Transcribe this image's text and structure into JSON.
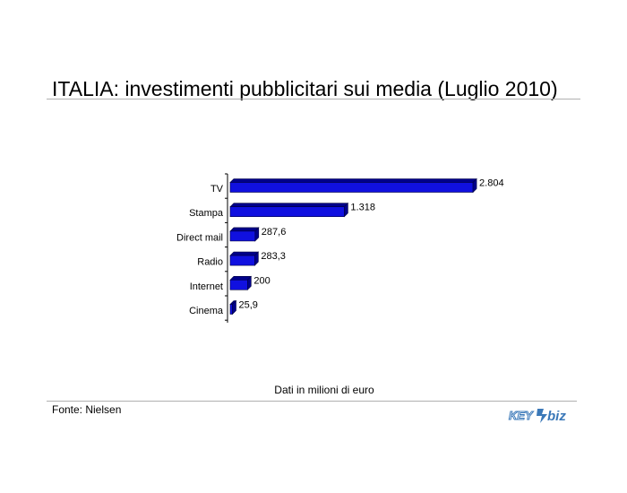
{
  "title": "ITALIA: investimenti pubblicitari sui media (Luglio 2010)",
  "note": "Dati in milioni di euro",
  "source": "Fonte: Nielsen",
  "logo": {
    "text_left": "KEY",
    "text_right": "biz",
    "icon": "key4biz-logo"
  },
  "colors": {
    "bar": "#1010e0",
    "bar_dark": "#00008a",
    "bar_edge": "#000040"
  },
  "chart_data": {
    "type": "bar",
    "orientation": "horizontal",
    "categories": [
      "TV",
      "Stampa",
      "Direct mail",
      "Radio",
      "Internet",
      "Cinema"
    ],
    "values": [
      2804,
      1318,
      287.6,
      283.3,
      200,
      25.9
    ],
    "value_labels": [
      "2.804",
      "1.318",
      "287,6",
      "283,3",
      "200",
      "25,9"
    ],
    "xlim": [
      0,
      3000
    ],
    "grid": false,
    "legend": "none"
  }
}
